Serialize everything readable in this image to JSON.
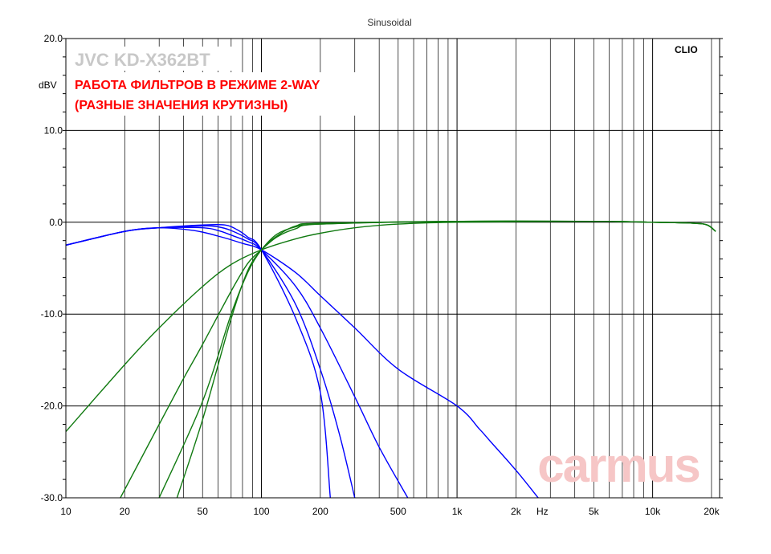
{
  "chart_data": {
    "type": "line",
    "title": "Sinusoidal",
    "brand_text": "CLIO",
    "overlay_title": "JVC KD-X362BT",
    "overlay_subtitle_line1": "РАБОТА ФИЛЬТРОВ В РЕЖИМЕ 2-WAY",
    "overlay_subtitle_line2": "(РАЗНЫЕ ЗНАЧЕНИЯ КРУТИЗНЫ)",
    "watermark": "carmus",
    "ylabel": "dBV",
    "xlabel": "Hz",
    "x_scale": "log",
    "xlim": [
      10,
      22000
    ],
    "ylim": [
      -30,
      20
    ],
    "grid": true,
    "x_major_ticks": [
      10,
      100,
      1000,
      10000
    ],
    "x_ticks": [
      {
        "value": 10,
        "label": "10"
      },
      {
        "value": 20,
        "label": "20"
      },
      {
        "value": 50,
        "label": "50"
      },
      {
        "value": 100,
        "label": "100"
      },
      {
        "value": 200,
        "label": "200"
      },
      {
        "value": 500,
        "label": "500"
      },
      {
        "value": 1000,
        "label": "1k"
      },
      {
        "value": 2000,
        "label": "2k"
      },
      {
        "value": 5000,
        "label": "5k"
      },
      {
        "value": 10000,
        "label": "10k"
      },
      {
        "value": 20000,
        "label": "20k"
      }
    ],
    "y_ticks": [
      {
        "value": 20,
        "label": "20.0"
      },
      {
        "value": 10,
        "label": "10.0"
      },
      {
        "value": 0,
        "label": "0.0"
      },
      {
        "value": -10,
        "label": "-10.0"
      },
      {
        "value": -20,
        "label": "-20.0"
      },
      {
        "value": -30,
        "label": "-30.0"
      }
    ],
    "colors": {
      "lowpass": "#0000ff",
      "highpass": "#117a11",
      "grid": "#000000",
      "title_gray": "#c8c8c8",
      "subtitle_red": "#ff0000",
      "watermark": "#f6c6c6"
    },
    "series": [
      {
        "group": "lowpass",
        "points": [
          [
            10,
            -2.5
          ],
          [
            20,
            -1.0
          ],
          [
            30,
            -0.6
          ],
          [
            50,
            -0.3
          ],
          [
            65,
            -0.3
          ],
          [
            75,
            -0.8
          ],
          [
            85,
            -1.6
          ],
          [
            100,
            -3.0
          ],
          [
            150,
            -10.5
          ],
          [
            200,
            -18.5
          ],
          [
            225,
            -30.0
          ]
        ]
      },
      {
        "group": "lowpass",
        "points": [
          [
            10,
            -2.5
          ],
          [
            20,
            -1.0
          ],
          [
            30,
            -0.6
          ],
          [
            50,
            -0.4
          ],
          [
            60,
            -0.5
          ],
          [
            70,
            -0.9
          ],
          [
            85,
            -1.8
          ],
          [
            100,
            -3.0
          ],
          [
            150,
            -9.0
          ],
          [
            200,
            -16.0
          ],
          [
            250,
            -23.0
          ],
          [
            300,
            -30.0
          ]
        ]
      },
      {
        "group": "lowpass",
        "points": [
          [
            10,
            -2.5
          ],
          [
            20,
            -1.0
          ],
          [
            30,
            -0.6
          ],
          [
            50,
            -0.6
          ],
          [
            60,
            -0.9
          ],
          [
            70,
            -1.4
          ],
          [
            85,
            -2.1
          ],
          [
            100,
            -3.0
          ],
          [
            150,
            -7.0
          ],
          [
            200,
            -11.5
          ],
          [
            300,
            -19.0
          ],
          [
            400,
            -24.5
          ],
          [
            560,
            -30.0
          ]
        ]
      },
      {
        "group": "lowpass",
        "points": [
          [
            10,
            -2.5
          ],
          [
            20,
            -1.0
          ],
          [
            30,
            -0.6
          ],
          [
            45,
            -0.9
          ],
          [
            60,
            -1.5
          ],
          [
            80,
            -2.3
          ],
          [
            100,
            -3.0
          ],
          [
            150,
            -5.5
          ],
          [
            200,
            -8.0
          ],
          [
            300,
            -11.5
          ],
          [
            500,
            -16.0
          ],
          [
            1000,
            -20.0
          ],
          [
            1300,
            -22.5
          ],
          [
            1500,
            -24.0
          ],
          [
            2000,
            -27.0
          ],
          [
            2600,
            -30.0
          ]
        ]
      },
      {
        "group": "highpass",
        "points": [
          [
            30,
            -30.0
          ],
          [
            50,
            -19.5
          ],
          [
            70,
            -10.0
          ],
          [
            85,
            -5.5
          ],
          [
            100,
            -3.0
          ],
          [
            120,
            -1.5
          ],
          [
            150,
            -0.4
          ],
          [
            200,
            -0.1
          ],
          [
            1000,
            0.1
          ],
          [
            5000,
            0.1
          ],
          [
            10000,
            0.0
          ],
          [
            16000,
            -0.1
          ],
          [
            19000,
            -0.3
          ],
          [
            21000,
            -1.0
          ]
        ]
      },
      {
        "group": "highpass",
        "points": [
          [
            37,
            -30.0
          ],
          [
            50,
            -21.5
          ],
          [
            70,
            -10.5
          ],
          [
            85,
            -5.3
          ],
          [
            100,
            -3.0
          ],
          [
            120,
            -1.3
          ],
          [
            150,
            -0.5
          ],
          [
            200,
            -0.2
          ],
          [
            1000,
            0.1
          ],
          [
            5000,
            0.1
          ],
          [
            10000,
            0.0
          ],
          [
            16000,
            -0.1
          ],
          [
            19000,
            -0.3
          ],
          [
            21000,
            -1.0
          ]
        ]
      },
      {
        "group": "highpass",
        "points": [
          [
            19,
            -30.0
          ],
          [
            30,
            -22.0
          ],
          [
            40,
            -17.0
          ],
          [
            50,
            -13.3
          ],
          [
            70,
            -7.5
          ],
          [
            85,
            -4.5
          ],
          [
            100,
            -3.0
          ],
          [
            120,
            -1.6
          ],
          [
            150,
            -0.7
          ],
          [
            200,
            -0.2
          ],
          [
            1000,
            0.1
          ],
          [
            5000,
            0.1
          ],
          [
            10000,
            0.0
          ],
          [
            16000,
            -0.1
          ],
          [
            19000,
            -0.3
          ],
          [
            21000,
            -1.0
          ]
        ]
      },
      {
        "group": "highpass",
        "points": [
          [
            10,
            -22.8
          ],
          [
            20,
            -15.5
          ],
          [
            30,
            -11.5
          ],
          [
            50,
            -7.0
          ],
          [
            70,
            -4.6
          ],
          [
            100,
            -3.0
          ],
          [
            150,
            -1.8
          ],
          [
            200,
            -1.2
          ],
          [
            300,
            -0.6
          ],
          [
            500,
            -0.2
          ],
          [
            1000,
            0.0
          ],
          [
            5000,
            0.1
          ],
          [
            10000,
            0.0
          ],
          [
            16000,
            -0.1
          ],
          [
            19000,
            -0.3
          ],
          [
            21000,
            -1.0
          ]
        ]
      }
    ]
  }
}
